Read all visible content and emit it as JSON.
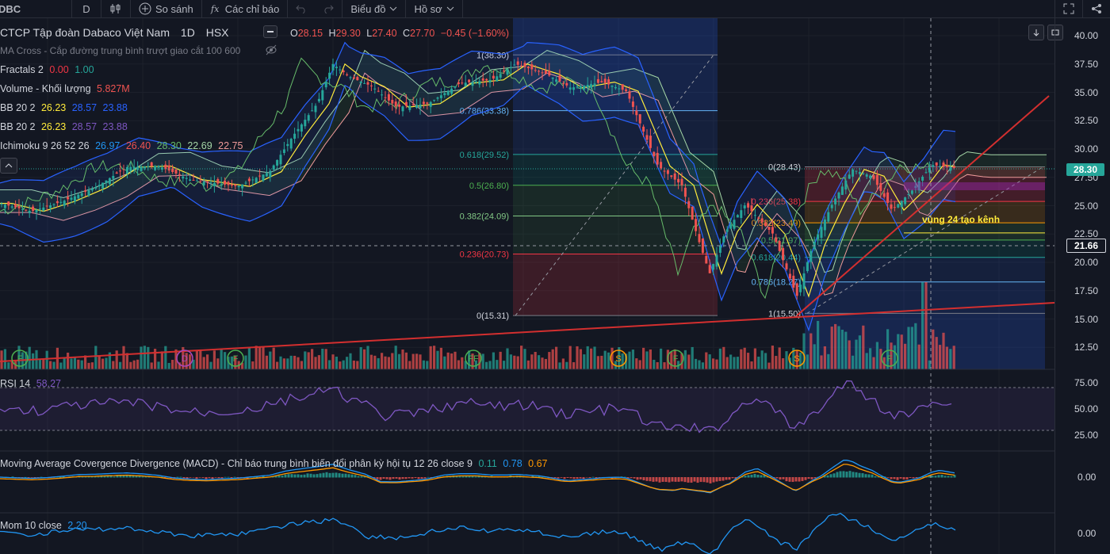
{
  "toolbar": {
    "symbol": "DBC",
    "interval": "D",
    "compare": "So sánh",
    "indicators": "Các chỉ báo",
    "chart_type": "Biểu đồ",
    "profile": "Hồ sơ"
  },
  "header": {
    "title": "CTCP Tập đoàn Dabaco Việt Nam",
    "interval": "1D",
    "exchange": "HSX",
    "ohlc": {
      "o_label": "O",
      "o": "28.15",
      "h_label": "H",
      "h": "29.30",
      "l_label": "L",
      "l": "27.40",
      "c_label": "C",
      "c": "27.70",
      "change": "−0.45 (−1.60%)"
    }
  },
  "legends": {
    "ma_cross": "MA Cross - Cắp đường trung bình trượt giao cắt 100 600",
    "fractals": {
      "name": "Fractals 2",
      "v1": "0.00",
      "v2": "1.00"
    },
    "volume": {
      "name": "Volume - Khối lượng",
      "value": "5.827M"
    },
    "bb1": {
      "name": "BB 20 2",
      "v1": "26.23",
      "v2": "28.57",
      "v3": "23.88"
    },
    "bb2": {
      "name": "BB 20 2",
      "v1": "26.23",
      "v2": "28.57",
      "v3": "23.88"
    },
    "ichimoku": {
      "name": "Ichimoku 9 26 52 26",
      "v1": "26.97",
      "v2": "26.40",
      "v3": "28.30",
      "v4": "22.69",
      "v5": "22.75"
    },
    "rsi": {
      "name": "RSI 14",
      "value": "58.27"
    },
    "macd": {
      "name": "Moving Average Covergence Divergence (MACD) - Chỉ báo trung bình biến đổi phân kỳ hội tụ 12 26 close 9",
      "v1": "0.11",
      "v2": "0.78",
      "v3": "0.67"
    },
    "mom": {
      "name": "Mom 10 close",
      "value": "2.20"
    }
  },
  "fib_left": [
    {
      "label": "1(38.30)",
      "value": 38.3
    },
    {
      "label": "0.786(33.38)",
      "value": 33.38
    },
    {
      "label": "0.618(29.52)",
      "value": 29.52
    },
    {
      "label": "0.5(26.80)",
      "value": 26.8
    },
    {
      "label": "0.382(24.09)",
      "value": 24.09
    },
    {
      "label": "0.236(20.73)",
      "value": 20.73
    },
    {
      "label": "0(15.31)",
      "value": 15.31
    }
  ],
  "fib_right": [
    {
      "label": "0(28.43)",
      "value": 28.43
    },
    {
      "label": "0.236(25.38)",
      "value": 25.38
    },
    {
      "label": "0.382(23.49)",
      "value": 23.49
    },
    {
      "label": "0.5(21.97)",
      "value": 21.97
    },
    {
      "label": "0.618(20.44)",
      "value": 20.44
    },
    {
      "label": "0.786(18.27)",
      "value": 18.27
    },
    {
      "label": "1(15.50)",
      "value": 15.5
    }
  ],
  "annotation": "vùng 24 tạo kênh",
  "price_axis": [
    "40.00",
    "37.50",
    "35.00",
    "32.50",
    "30.00",
    "27.50",
    "25.00",
    "22.50",
    "20.00",
    "17.50",
    "15.00",
    "12.50"
  ],
  "last_price": "28.30",
  "crosshair_price": "21.66",
  "rsi_axis": [
    "75.00",
    "50.00",
    "25.00"
  ],
  "macd_axis": "0.00",
  "mom_axis": "0.00",
  "fractal_markers": [
    "F",
    "D",
    "F",
    "FF",
    "S",
    "F",
    "S",
    "F"
  ],
  "colors": {
    "up": "#26a69a",
    "down": "#ef5350",
    "fib_red": "#f23645",
    "trend": "#d32f2f",
    "bb": "#2962ff",
    "rsi": "#7e57c2",
    "macd": "#2196f3",
    "signal": "#ff9800"
  },
  "icons": [
    "plus-circle-icon",
    "function-icon",
    "undo-icon",
    "redo-icon",
    "chevron-down-icon",
    "fullscreen-icon",
    "share-icon",
    "eye-off-icon",
    "arrow-down-icon",
    "maximize-icon"
  ]
}
